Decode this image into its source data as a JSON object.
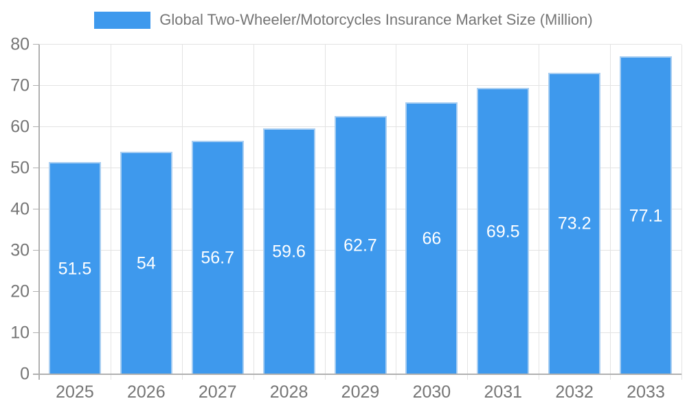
{
  "chart_data": {
    "type": "bar",
    "title": "Global Two-Wheeler/Motorcycles Insurance Market Size (Million)",
    "categories": [
      "2025",
      "2026",
      "2027",
      "2028",
      "2029",
      "2030",
      "2031",
      "2032",
      "2033"
    ],
    "values": [
      51.5,
      54,
      56.7,
      59.6,
      62.7,
      66,
      69.5,
      73.2,
      77.1
    ],
    "ylim": [
      0,
      80
    ],
    "yticks": [
      0,
      10,
      20,
      30,
      40,
      50,
      60,
      70,
      80
    ],
    "grid": true,
    "legend_position": "top",
    "colors": {
      "bar_fill": "#3E99ED",
      "bar_border": "#A8CEF2",
      "value_label_text": "#FFFFFF",
      "grid_line": "#E3E3E3",
      "axis_line": "#B0B0B0",
      "tick_label_text": "#757575",
      "title_text": "#757575",
      "background": "#FFFFFF"
    }
  }
}
